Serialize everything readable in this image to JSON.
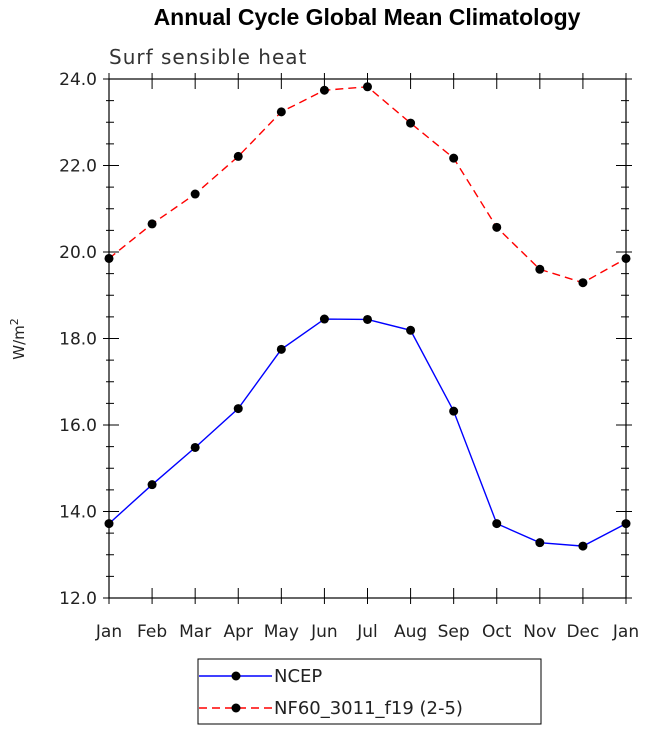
{
  "chart_data": {
    "type": "line",
    "title": "Annual Cycle Global Mean Climatology",
    "subtitle": "Surf sensible heat",
    "xlabel": "",
    "ylabel": "W/m",
    "ylabel_sup": "2",
    "categories": [
      "Jan",
      "Feb",
      "Mar",
      "Apr",
      "May",
      "Jun",
      "Jul",
      "Aug",
      "Sep",
      "Oct",
      "Nov",
      "Dec",
      "Jan"
    ],
    "ylim": [
      12.0,
      24.0
    ],
    "yticks": [
      "12.0",
      "14.0",
      "16.0",
      "18.0",
      "20.0",
      "22.0",
      "24.0"
    ],
    "legend_position": "bottom",
    "series": [
      {
        "name": "NCEP",
        "color": "#0000ff",
        "dash": "solid",
        "values": [
          13.72,
          14.62,
          15.48,
          16.38,
          17.75,
          18.45,
          18.44,
          18.19,
          16.32,
          13.72,
          13.28,
          13.2,
          13.72
        ]
      },
      {
        "name": "NF60_3011_f19 (2-5)",
        "color": "#ff0000",
        "dash": "dashed",
        "values": [
          19.85,
          20.65,
          21.34,
          22.21,
          23.24,
          23.74,
          23.82,
          22.98,
          22.17,
          20.57,
          19.6,
          19.29,
          19.85
        ]
      }
    ]
  }
}
